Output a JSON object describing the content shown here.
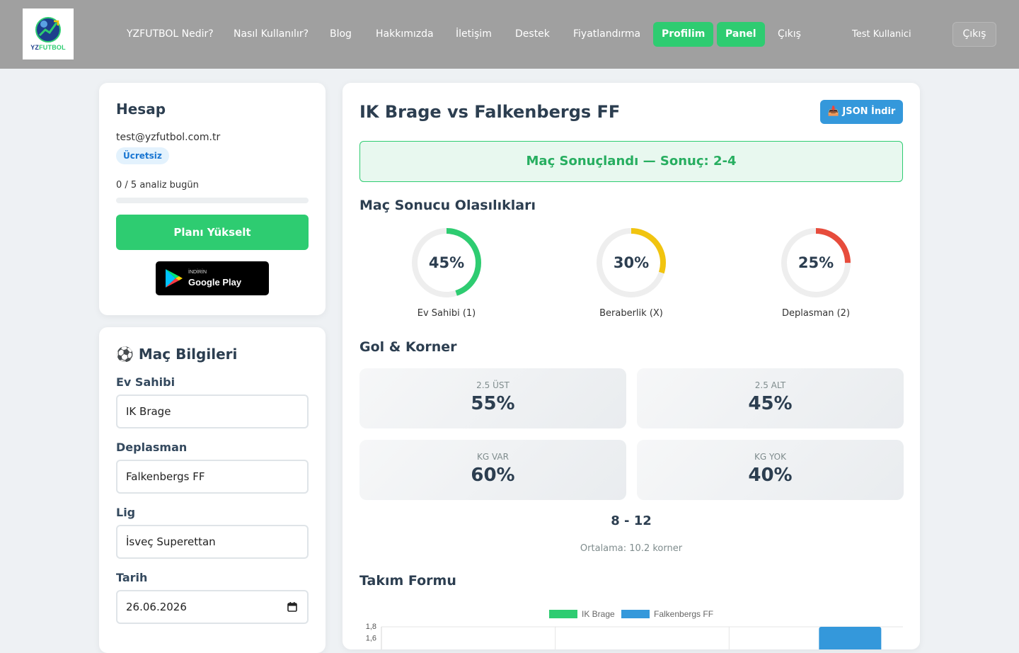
{
  "brand": {
    "logo_text_a": "YZ",
    "logo_text_b": "FUTBOL"
  },
  "nav": {
    "links": [
      "YZFUTBOL Nedir?",
      "Nasıl Kullanılır?",
      "Blog",
      "Hakkımızda",
      "İletişim",
      "Destek",
      "Fiyatlandırma"
    ],
    "profile_label": "Profilim",
    "panel_label": "Panel",
    "logout_link": "Çıkış",
    "user_name": "Test Kullanici",
    "logout_button": "Çıkış"
  },
  "account": {
    "title": "Hesap",
    "email": "test@yzfutbol.com.tr",
    "plan_badge": "Ücretsiz",
    "usage_text": "0 / 5 analiz bugün",
    "usage_fraction": 0,
    "upgrade_label": "Planı Yükselt",
    "gplay_small": "İNDİRİN",
    "gplay_big": "Google Play"
  },
  "match_info": {
    "title": "⚽ Maç Bilgileri",
    "home_label": "Ev Sahibi",
    "home_value": "IK Brage",
    "away_label": "Deplasman",
    "away_value": "Falkenbergs FF",
    "league_label": "Lig",
    "league_value": "İsveç Superettan",
    "date_label": "Tarih",
    "date_value": "26.06.2026"
  },
  "main": {
    "title": "IK Brage vs Falkenbergs FF",
    "json_button": "📥 JSON İndir",
    "result_banner": "Maç Sonuçlandı — Sonuç: 2-4",
    "outcome_title": "Maç Sonucu Olasılıkları",
    "outcomes": [
      {
        "value": "45%",
        "fraction": 0.45,
        "label": "Ev Sahibi (1)",
        "color": "#2ecc71"
      },
      {
        "value": "30%",
        "fraction": 0.3,
        "label": "Beraberlik (X)",
        "color": "#f1c40f"
      },
      {
        "value": "25%",
        "fraction": 0.25,
        "label": "Deplasman (2)",
        "color": "#e74c3c"
      }
    ],
    "goal_title": "Gol & Korner",
    "stats": [
      {
        "label": "2.5 ÜST",
        "value": "55%"
      },
      {
        "label": "2.5 ALT",
        "value": "45%"
      },
      {
        "label": "KG VAR",
        "value": "60%"
      },
      {
        "label": "KG YOK",
        "value": "40%"
      }
    ],
    "corner_range": "8 - 12",
    "corner_avg": "Ortalama: 10.2 korner",
    "form_title": "Takım Formu"
  },
  "chart_data": {
    "type": "bar",
    "series": [
      {
        "name": "IK Brage",
        "color": "#2ecc71"
      },
      {
        "name": "Falkenbergs FF",
        "color": "#3498db"
      }
    ],
    "y_tick_labels": [
      "1,8",
      "1,6"
    ],
    "ylim": [
      0,
      1.8
    ],
    "legend": "top-center",
    "grid": true,
    "visible_bars": [
      {
        "series": "Falkenbergs FF",
        "category_index": 2,
        "value": 1.8
      }
    ]
  }
}
